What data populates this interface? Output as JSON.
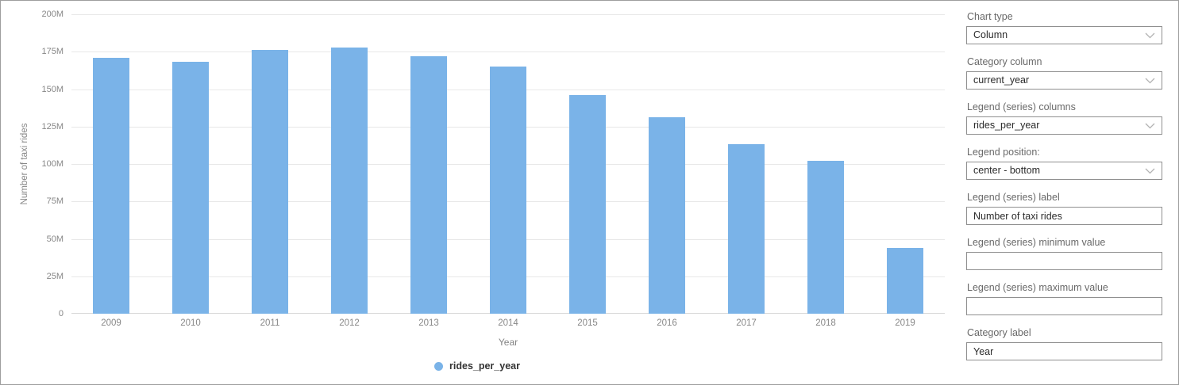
{
  "chart_data": {
    "type": "bar",
    "title": "",
    "categories": [
      "2009",
      "2010",
      "2011",
      "2012",
      "2013",
      "2014",
      "2015",
      "2016",
      "2017",
      "2018",
      "2019"
    ],
    "series": [
      {
        "name": "rides_per_year",
        "values": [
          171,
          168,
          176,
          178,
          172,
          165,
          146,
          131,
          113,
          102,
          44
        ]
      }
    ],
    "value_unit": "M",
    "xlabel": "Year",
    "ylabel": "Number of taxi rides",
    "ylim": [
      0,
      200
    ],
    "ytick_labels": [
      "0",
      "25M",
      "50M",
      "75M",
      "100M",
      "125M",
      "150M",
      "175M",
      "200M"
    ],
    "grid": "horizontal",
    "legend_position": "center-bottom"
  },
  "colors": {
    "bar": "#7ab3e8",
    "grid": "#e8e8e8",
    "zero_line": "#d7d7d7",
    "axis_text": "#878787",
    "legend_text": "#333333"
  },
  "panel": {
    "fields": [
      {
        "label": "Chart type",
        "value": "Column",
        "type": "dropdown"
      },
      {
        "label": "Category column",
        "value": "current_year",
        "type": "dropdown"
      },
      {
        "label": "Legend (series) columns",
        "value": "rides_per_year",
        "type": "dropdown"
      },
      {
        "label": "Legend position:",
        "value": "center - bottom",
        "type": "dropdown"
      },
      {
        "label": "Legend (series) label",
        "value": "Number of taxi rides",
        "type": "text"
      },
      {
        "label": "Legend (series) minimum value",
        "value": "",
        "type": "text"
      },
      {
        "label": "Legend (series) maximum value",
        "value": "",
        "type": "text"
      },
      {
        "label": "Category label",
        "value": "Year",
        "type": "text"
      }
    ]
  }
}
